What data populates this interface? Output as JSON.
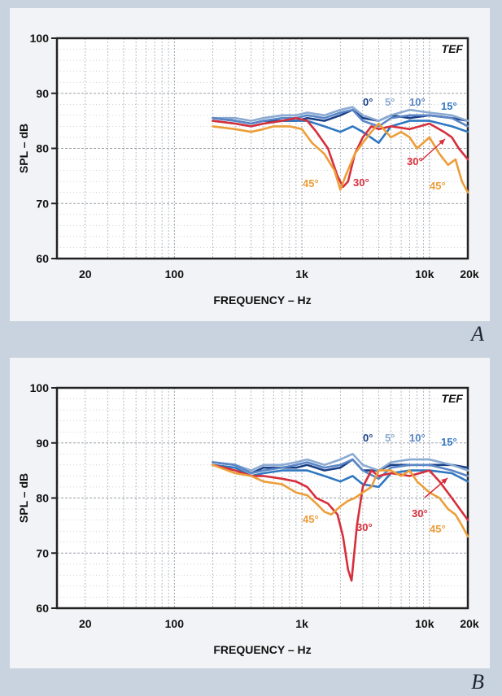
{
  "colors": {
    "background": "#c9d3df",
    "panel": "#f2f3f6",
    "grid": "#9aa0a8",
    "deg0": "#1a3f86",
    "deg5": "#8aaad2",
    "deg10": "#5a86c6",
    "deg15": "#2f77c0",
    "deg30": "#d62f3b",
    "deg45": "#ec9e3a"
  },
  "chart_data": [
    {
      "type": "line",
      "panel_label": "A",
      "brand": "TEF",
      "title": "",
      "xlabel": "FREQUENCY – Hz",
      "ylabel": "SPL – dB",
      "xscale": "log",
      "xlim": [
        12,
        20000
      ],
      "ylim": [
        60,
        100
      ],
      "x_ticks": [
        20,
        100,
        1000,
        10000,
        20000
      ],
      "x_tick_labels": [
        "20",
        "100",
        "1k",
        "10k",
        "20k"
      ],
      "y_ticks": [
        60,
        70,
        80,
        90,
        100
      ],
      "y_tick_labels": [
        "60",
        "70",
        "80",
        "90",
        "100"
      ],
      "grid": true,
      "series": [
        {
          "name": "0°",
          "color": "#1a3f86",
          "x": [
            200,
            300,
            400,
            500,
            700,
            900,
            1100,
            1500,
            2000,
            2500,
            3000,
            4000,
            5000,
            7000,
            10000,
            15000,
            20000
          ],
          "y": [
            85.5,
            85,
            84.5,
            85,
            85,
            85,
            85.5,
            85,
            86,
            87,
            85.5,
            85,
            86,
            85.5,
            86,
            85.5,
            85
          ]
        },
        {
          "name": "5°",
          "color": "#8aaad2",
          "x": [
            200,
            300,
            400,
            500,
            700,
            900,
            1100,
            1500,
            2000,
            2500,
            3000,
            4000,
            5000,
            7000,
            10000,
            15000,
            20000
          ],
          "y": [
            85.5,
            85.5,
            85,
            85.5,
            86,
            86,
            86.5,
            86,
            87,
            87.5,
            86,
            85,
            86,
            87,
            86.5,
            86,
            85
          ]
        },
        {
          "name": "10°",
          "color": "#5a86c6",
          "x": [
            200,
            300,
            400,
            500,
            700,
            900,
            1100,
            1500,
            2000,
            2500,
            3000,
            4000,
            5000,
            7000,
            10000,
            15000,
            20000
          ],
          "y": [
            85.5,
            85,
            84.5,
            85,
            85.5,
            85.5,
            86,
            85.5,
            86.5,
            87,
            85,
            84,
            85.5,
            86,
            86,
            85.5,
            84
          ]
        },
        {
          "name": "15°",
          "color": "#2f77c0",
          "x": [
            200,
            300,
            400,
            500,
            700,
            900,
            1100,
            1500,
            2000,
            2500,
            3000,
            4000,
            5000,
            7000,
            10000,
            15000,
            20000
          ],
          "y": [
            85,
            84.5,
            84,
            84.5,
            85,
            85,
            85,
            84,
            83,
            84,
            83,
            81,
            84,
            85,
            85,
            84,
            83
          ]
        },
        {
          "name": "30°",
          "color": "#d62f3b",
          "x": [
            200,
            300,
            400,
            500,
            700,
            900,
            1100,
            1300,
            1600,
            1900,
            2100,
            2300,
            2600,
            3000,
            3500,
            4000,
            5000,
            7000,
            10000,
            13000,
            15000,
            17000,
            20000
          ],
          "y": [
            85,
            84.5,
            84,
            84.5,
            85,
            85.5,
            85,
            83,
            80,
            75,
            73,
            74,
            79,
            82,
            84,
            83.5,
            84,
            83.5,
            84.5,
            83,
            82,
            80,
            78
          ]
        },
        {
          "name": "45°",
          "color": "#ec9e3a",
          "x": [
            200,
            300,
            400,
            500,
            600,
            700,
            800,
            1000,
            1200,
            1500,
            1800,
            2000,
            2200,
            2600,
            3000,
            3500,
            4000,
            5000,
            6000,
            7000,
            8000,
            10000,
            12000,
            14000,
            16000,
            18000,
            20000
          ],
          "y": [
            84,
            83.5,
            83,
            83.5,
            84,
            84,
            84,
            83.5,
            81,
            79,
            76,
            72.5,
            75,
            79,
            81,
            83,
            84.5,
            82,
            83,
            82,
            80,
            82,
            79,
            77,
            78,
            74,
            72
          ]
        }
      ],
      "annotations": [
        {
          "text": "0°",
          "color": "#1a3f86"
        },
        {
          "text": "5°",
          "color": "#8aaad2"
        },
        {
          "text": "10°",
          "color": "#5a86c6"
        },
        {
          "text": "15°",
          "color": "#2f77c0"
        },
        {
          "text": "30°",
          "color": "#d62f3b"
        },
        {
          "text": "30°",
          "color": "#d62f3b"
        },
        {
          "text": "45°",
          "color": "#ec9e3a"
        },
        {
          "text": "45°",
          "color": "#ec9e3a"
        }
      ]
    },
    {
      "type": "line",
      "panel_label": "B",
      "brand": "TEF",
      "title": "",
      "xlabel": "FREQUENCY – Hz",
      "ylabel": "SPL – dB",
      "xscale": "log",
      "xlim": [
        12,
        20000
      ],
      "ylim": [
        60,
        100
      ],
      "x_ticks": [
        20,
        100,
        1000,
        10000,
        20000
      ],
      "x_tick_labels": [
        "20",
        "100",
        "1k",
        "10k",
        "20k"
      ],
      "y_ticks": [
        60,
        70,
        80,
        90,
        100
      ],
      "y_tick_labels": [
        "60",
        "70",
        "80",
        "90",
        "100"
      ],
      "grid": true,
      "series": [
        {
          "name": "0°",
          "color": "#1a3f86",
          "x": [
            200,
            300,
            400,
            500,
            700,
            900,
            1100,
            1500,
            2000,
            2500,
            3000,
            4000,
            5000,
            7000,
            10000,
            15000,
            20000
          ],
          "y": [
            86.5,
            86,
            84.5,
            85.5,
            85.5,
            85.5,
            86,
            85,
            85.5,
            87,
            85,
            85,
            86,
            86,
            86,
            86,
            85.5
          ]
        },
        {
          "name": "5°",
          "color": "#8aaad2",
          "x": [
            200,
            300,
            400,
            500,
            700,
            900,
            1100,
            1500,
            2000,
            2500,
            3000,
            4000,
            5000,
            7000,
            10000,
            15000,
            20000
          ],
          "y": [
            86.5,
            86,
            85,
            86,
            86,
            86.5,
            87,
            86,
            87,
            88,
            86,
            85,
            86.5,
            87,
            87,
            86,
            85
          ]
        },
        {
          "name": "10°",
          "color": "#5a86c6",
          "x": [
            200,
            300,
            400,
            500,
            700,
            900,
            1100,
            1500,
            2000,
            2500,
            3000,
            4000,
            5000,
            7000,
            10000,
            15000,
            20000
          ],
          "y": [
            86.5,
            86,
            84.5,
            85,
            85.5,
            86,
            86.5,
            85.5,
            86,
            87,
            85,
            83.5,
            85.5,
            86,
            86,
            85,
            84
          ]
        },
        {
          "name": "15°",
          "color": "#2f77c0",
          "x": [
            200,
            300,
            400,
            500,
            700,
            900,
            1100,
            1500,
            2000,
            2500,
            3000,
            4000,
            5000,
            7000,
            10000,
            15000,
            20000
          ],
          "y": [
            86,
            85.5,
            84,
            84.5,
            85,
            85,
            85,
            84,
            83,
            84,
            82.5,
            82,
            84.5,
            85,
            85,
            84.5,
            83
          ]
        },
        {
          "name": "30°",
          "color": "#d62f3b",
          "x": [
            200,
            300,
            400,
            500,
            700,
            900,
            1100,
            1300,
            1600,
            1900,
            2100,
            2300,
            2450,
            2700,
            3000,
            3500,
            4000,
            5000,
            7000,
            10000,
            12000,
            15000,
            20000
          ],
          "y": [
            86,
            85,
            84,
            84,
            83.5,
            83,
            82,
            80,
            79,
            77,
            73,
            67,
            65,
            75,
            82,
            85,
            84,
            84.5,
            84,
            85,
            83,
            80,
            76
          ]
        },
        {
          "name": "45°",
          "color": "#ec9e3a",
          "x": [
            200,
            300,
            400,
            500,
            700,
            900,
            1100,
            1300,
            1500,
            1700,
            2000,
            2300,
            2600,
            3000,
            3500,
            4000,
            5000,
            6000,
            7000,
            8000,
            10000,
            12000,
            14000,
            16000,
            18000,
            20000
          ],
          "y": [
            86,
            84.5,
            84,
            83,
            82.5,
            81,
            80.5,
            79,
            77.5,
            77,
            78.5,
            79.5,
            80,
            81,
            82,
            85,
            85,
            84,
            85,
            83,
            81,
            80,
            78,
            77,
            75,
            73
          ]
        }
      ],
      "annotations": [
        {
          "text": "0°",
          "color": "#1a3f86"
        },
        {
          "text": "5°",
          "color": "#8aaad2"
        },
        {
          "text": "10°",
          "color": "#5a86c6"
        },
        {
          "text": "15°",
          "color": "#2f77c0"
        },
        {
          "text": "30°",
          "color": "#d62f3b"
        },
        {
          "text": "30°",
          "color": "#d62f3b"
        },
        {
          "text": "45°",
          "color": "#ec9e3a"
        },
        {
          "text": "45°",
          "color": "#ec9e3a"
        }
      ]
    }
  ]
}
